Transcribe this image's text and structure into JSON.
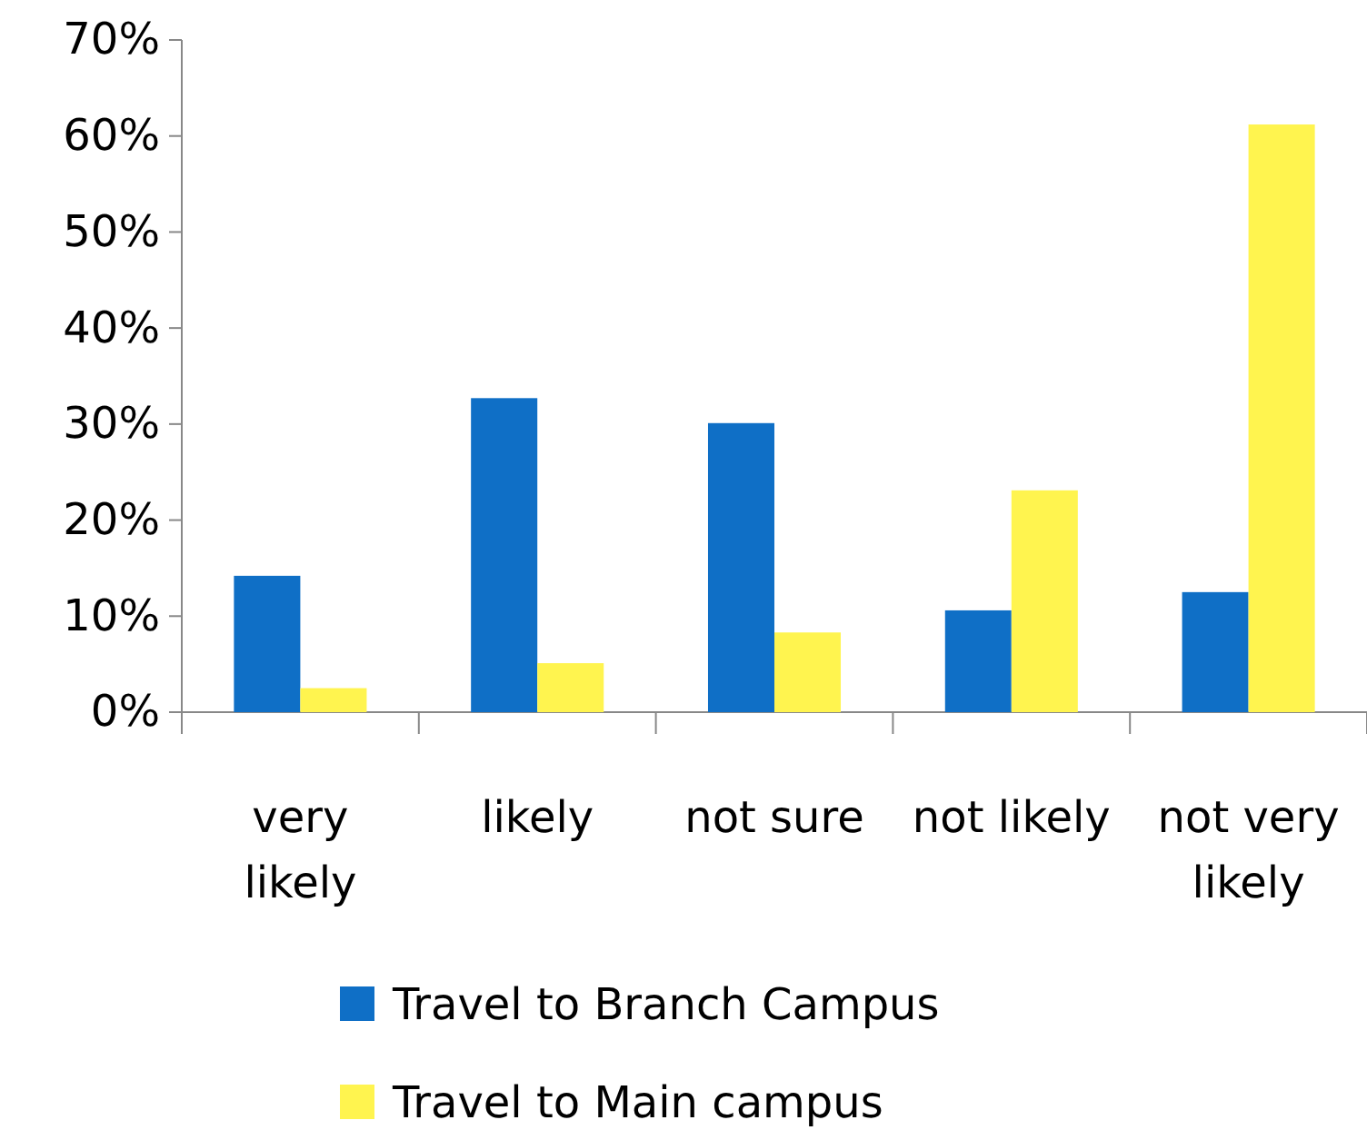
{
  "chart_data": {
    "type": "bar",
    "categories": [
      "very likely",
      "likely",
      "not sure",
      "not likely",
      "not very likely"
    ],
    "series": [
      {
        "name": "Travel to Branch Campus",
        "color": "#0f6fc6",
        "values": [
          14.2,
          32.7,
          30.1,
          10.6,
          12.5
        ]
      },
      {
        "name": "Travel to Main campus",
        "color": "#fff44f",
        "values": [
          2.5,
          5.1,
          8.3,
          23.1,
          61.2
        ]
      }
    ],
    "ylim": [
      0,
      70
    ],
    "yticks": [
      {
        "value": 0,
        "label": "0%"
      },
      {
        "value": 10,
        "label": "10%"
      },
      {
        "value": 20,
        "label": "20%"
      },
      {
        "value": 30,
        "label": "30%"
      },
      {
        "value": 40,
        "label": "40%"
      },
      {
        "value": 50,
        "label": "50%"
      },
      {
        "value": 60,
        "label": "60%"
      },
      {
        "value": 70,
        "label": "70%"
      }
    ],
    "grid": false,
    "legend": "bottom"
  }
}
